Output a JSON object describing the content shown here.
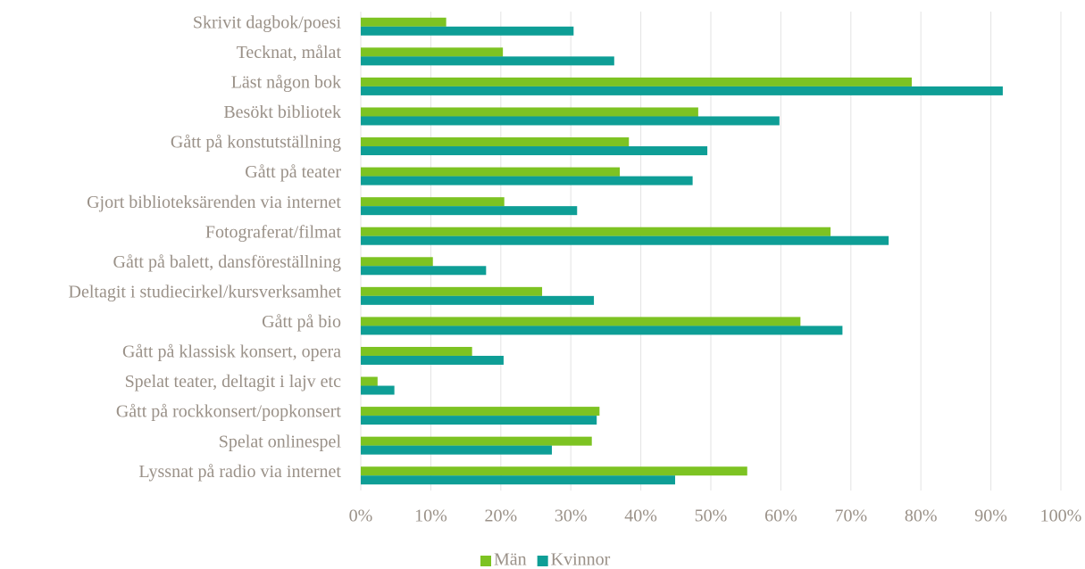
{
  "chart_data": {
    "type": "hbar",
    "categories": [
      "Skrivit dagbok/poesi",
      "Tecknat, målat",
      "Läst någon bok",
      "Besökt bibliotek",
      "Gått på konstutställning",
      "Gått på teater",
      "Gjort biblioteksärenden via internet",
      "Fotograferat/filmat",
      "Gått på balett, dansföreställning",
      "Deltagit i studiecirkel/kursverksamhet",
      "Gått på bio",
      "Gått på klassisk konsert, opera",
      "Spelat teater, deltagit i lajv etc",
      "Gått på rockkonsert/popkonsert",
      "Spelat onlinespel",
      "Lyssnat på radio via internet"
    ],
    "series": [
      {
        "name": "Män",
        "color": "#7dc322",
        "values": [
          12.2,
          20.3,
          78.7,
          48.2,
          38.3,
          37.0,
          20.5,
          67.1,
          10.3,
          25.9,
          62.8,
          15.9,
          2.4,
          34.1,
          33.0,
          55.2
        ]
      },
      {
        "name": "Kvinnor",
        "color": "#0e9e96",
        "values": [
          30.4,
          36.2,
          91.7,
          59.8,
          49.5,
          47.4,
          30.9,
          75.4,
          17.9,
          33.3,
          68.8,
          20.4,
          4.8,
          33.7,
          27.3,
          44.9
        ]
      }
    ],
    "xlim": [
      0,
      100
    ],
    "xticks": [
      {
        "value": 0,
        "label": "0%"
      },
      {
        "value": 10,
        "label": "10%"
      },
      {
        "value": 20,
        "label": "20%"
      },
      {
        "value": 30,
        "label": "30%"
      },
      {
        "value": 40,
        "label": "40%"
      },
      {
        "value": 50,
        "label": "50%"
      },
      {
        "value": 60,
        "label": "60%"
      },
      {
        "value": 70,
        "label": "70%"
      },
      {
        "value": 80,
        "label": "80%"
      },
      {
        "value": 90,
        "label": "90%"
      },
      {
        "value": 100,
        "label": "100%"
      }
    ],
    "grid": true,
    "legend": "bottom"
  }
}
